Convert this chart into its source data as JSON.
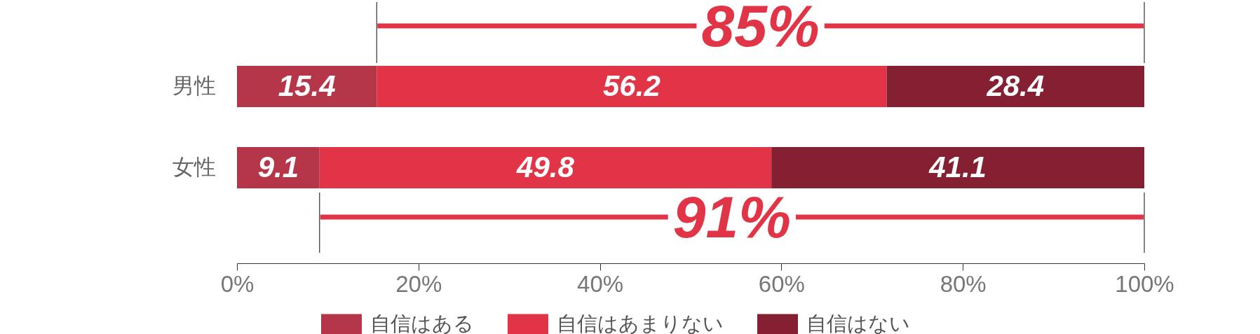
{
  "chart_data": {
    "type": "bar",
    "orientation": "horizontal",
    "stacked": true,
    "categories": [
      "男性",
      "女性"
    ],
    "series": [
      {
        "name": "自信はある",
        "color": "#b63649",
        "values": [
          15.4,
          9.1
        ]
      },
      {
        "name": "自信はあまりない",
        "color": "#e13547",
        "values": [
          56.2,
          49.8
        ]
      },
      {
        "name": "自信はない",
        "color": "#852032",
        "values": [
          28.4,
          41.1
        ]
      }
    ],
    "xlim": [
      0,
      100
    ],
    "xticks": [
      {
        "value": 0,
        "label": "0%"
      },
      {
        "value": 20,
        "label": "20%"
      },
      {
        "value": 40,
        "label": "40%"
      },
      {
        "value": 60,
        "label": "60%"
      },
      {
        "value": 80,
        "label": "80%"
      },
      {
        "value": 100,
        "label": "100%"
      }
    ],
    "data_labels": true,
    "legend": "bottom",
    "grid": false,
    "annotations": [
      "85%",
      "91%"
    ]
  }
}
